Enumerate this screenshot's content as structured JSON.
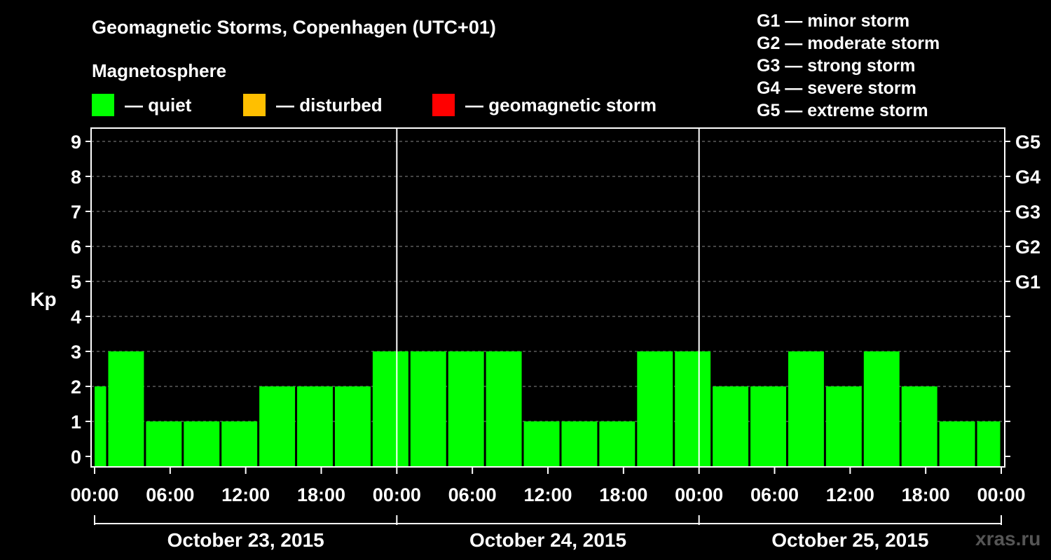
{
  "title": "Geomagnetic Storms, Copenhagen (UTC+01)",
  "subtitle": "Magnetosphere",
  "legend": [
    {
      "label": "— quiet",
      "color": "#00ff00"
    },
    {
      "label": "— disturbed",
      "color": "#ffbf00"
    },
    {
      "label": "— geomagnetic storm",
      "color": "#ff0000"
    }
  ],
  "storm_levels": [
    "G1 — minor storm",
    "G2 — moderate storm",
    "G3 — strong storm",
    "G4 — severe storm",
    "G5 — extreme storm"
  ],
  "watermark": "xras.ru",
  "chart_data": {
    "type": "bar",
    "ylabel": "Kp",
    "ylim": [
      0,
      9
    ],
    "yticks": [
      "0",
      "1",
      "2",
      "3",
      "4",
      "5",
      "6",
      "7",
      "8",
      "9"
    ],
    "right_ticks": [
      {
        "value": 5,
        "label": "G1"
      },
      {
        "value": 6,
        "label": "G2"
      },
      {
        "value": 7,
        "label": "G3"
      },
      {
        "value": 8,
        "label": "G4"
      },
      {
        "value": 9,
        "label": "G5"
      }
    ],
    "x_tick_labels": [
      "00:00",
      "06:00",
      "12:00",
      "18:00",
      "00:00",
      "06:00",
      "12:00",
      "18:00",
      "00:00",
      "06:00",
      "12:00",
      "18:00",
      "00:00"
    ],
    "days": [
      "October 23, 2015",
      "October 24, 2015",
      "October 25, 2015"
    ],
    "x_range_hours": [
      0,
      72
    ],
    "bars": [
      {
        "start": 0,
        "end": 1,
        "value": 2
      },
      {
        "start": 1,
        "end": 4,
        "value": 3
      },
      {
        "start": 4,
        "end": 7,
        "value": 1
      },
      {
        "start": 7,
        "end": 10,
        "value": 1
      },
      {
        "start": 10,
        "end": 13,
        "value": 1
      },
      {
        "start": 13,
        "end": 16,
        "value": 2
      },
      {
        "start": 16,
        "end": 19,
        "value": 2
      },
      {
        "start": 19,
        "end": 22,
        "value": 2
      },
      {
        "start": 22,
        "end": 25,
        "value": 3
      },
      {
        "start": 25,
        "end": 28,
        "value": 3
      },
      {
        "start": 28,
        "end": 31,
        "value": 3
      },
      {
        "start": 31,
        "end": 34,
        "value": 3
      },
      {
        "start": 34,
        "end": 37,
        "value": 1
      },
      {
        "start": 37,
        "end": 40,
        "value": 1
      },
      {
        "start": 40,
        "end": 43,
        "value": 1
      },
      {
        "start": 43,
        "end": 46,
        "value": 3
      },
      {
        "start": 46,
        "end": 49,
        "value": 3
      },
      {
        "start": 49,
        "end": 52,
        "value": 2
      },
      {
        "start": 52,
        "end": 55,
        "value": 2
      },
      {
        "start": 55,
        "end": 58,
        "value": 3
      },
      {
        "start": 58,
        "end": 61,
        "value": 2
      },
      {
        "start": 61,
        "end": 64,
        "value": 3
      },
      {
        "start": 64,
        "end": 67,
        "value": 2
      },
      {
        "start": 67,
        "end": 70,
        "value": 1
      },
      {
        "start": 70,
        "end": 72,
        "value": 1
      }
    ],
    "bar_color": "#00ff00",
    "grid": true
  }
}
